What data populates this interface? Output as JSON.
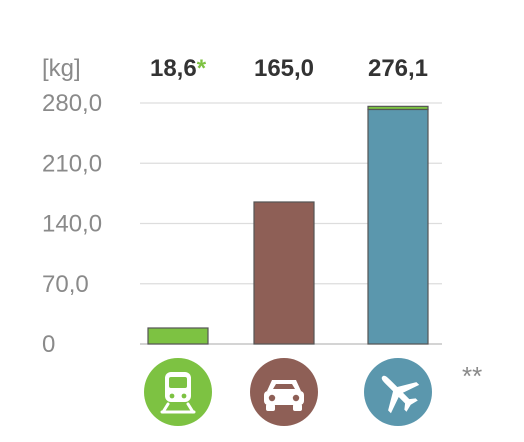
{
  "chart_data": {
    "type": "bar",
    "stacked": true,
    "unit": "[kg]",
    "ylim": [
      0,
      280
    ],
    "yticks": [
      "0",
      "70,0",
      "140,0",
      "210,0",
      "280,0"
    ],
    "ytick_values": [
      0,
      70,
      140,
      210,
      280
    ],
    "grid": true,
    "categories": [
      "train-icon",
      "car-icon",
      "plane-icon"
    ],
    "category_colors": [
      "#7dc242",
      "#8e5f56",
      "#5b97ad"
    ],
    "series": [
      {
        "color_by_category": true,
        "values": [
          18.6,
          165.0,
          272.5
        ]
      },
      {
        "color": "#7dc242",
        "values": [
          0,
          0,
          3.6
        ]
      }
    ],
    "value_labels": [
      {
        "text": "18,6",
        "marker": "*"
      },
      {
        "text": "165,0",
        "marker": ""
      },
      {
        "text": "276,1",
        "marker": ""
      }
    ],
    "footnote_marker": "**"
  }
}
